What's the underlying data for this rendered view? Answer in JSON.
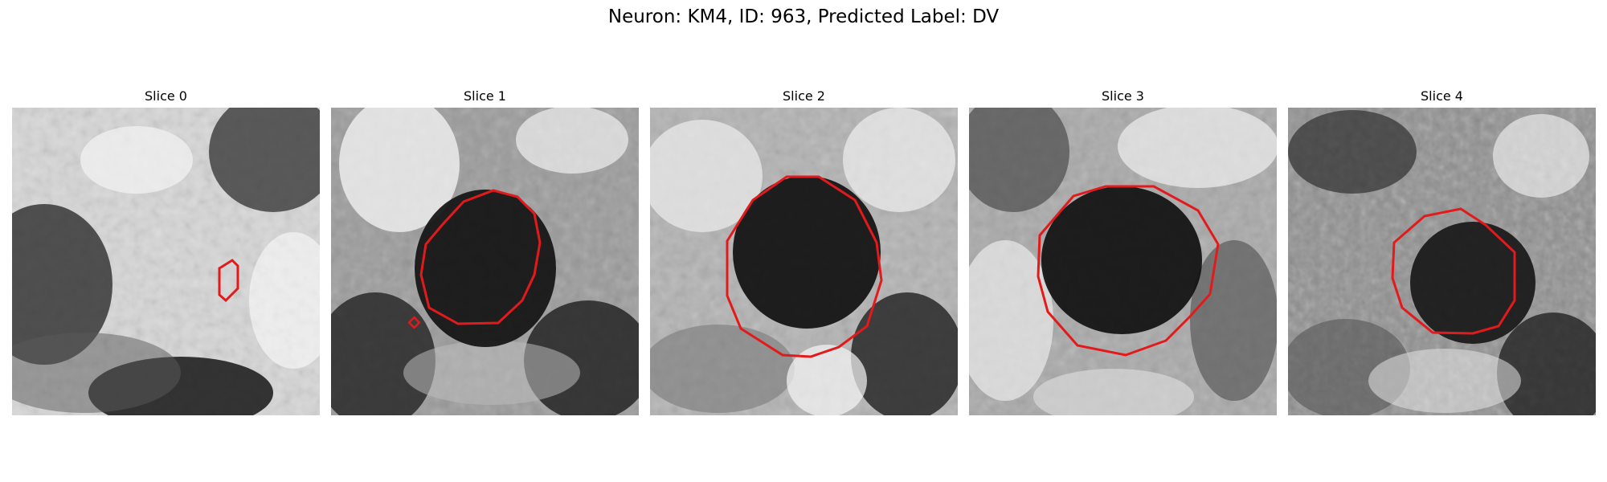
{
  "figure": {
    "title": "Neuron: KM4, ID: 963, Predicted Label: DV"
  },
  "colors": {
    "contour": "#e31a1c",
    "colormap": "grayscale"
  },
  "panels": [
    {
      "title": "Slice 0",
      "image": "grayscale microscopy slice, mostly bright with darker blobs at bottom-left and top-right",
      "contour": "small irregular red outline near center"
    },
    {
      "title": "Slice 1",
      "image": "grayscale microscopy slice with dark circular cell body in center",
      "contour": "red polygon outline around dark cell body plus a tiny red diamond at lower left"
    },
    {
      "title": "Slice 2",
      "image": "grayscale microscopy slice with large dark circular cell body",
      "contour": "red polygon outline around cell body"
    },
    {
      "title": "Slice 3",
      "image": "grayscale microscopy slice with large dark circular cell body",
      "contour": "red polygon outline around cell body"
    },
    {
      "title": "Slice 4",
      "image": "grayscale microscopy slice with smaller dark cell body",
      "contour": "red octagon-like outline around cell body"
    }
  ]
}
